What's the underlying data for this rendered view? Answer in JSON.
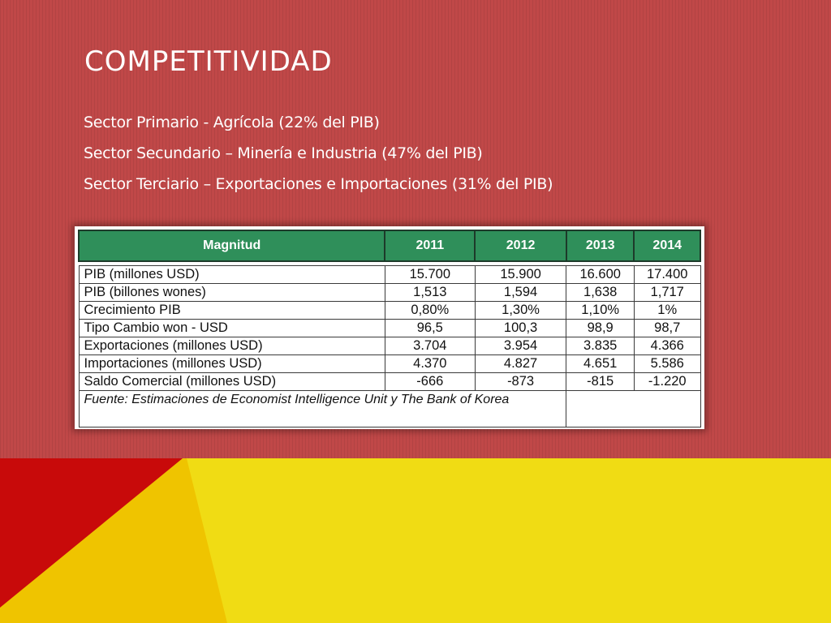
{
  "slide": {
    "title": "COMPETITIVIDAD",
    "bullets": [
      "Sector Primario - Agrícola (22% del PIB)",
      "Sector Secundario – Minería e Industria (47% del PIB)",
      "Sector Terciario – Exportaciones e Importaciones (31% del PIB)"
    ]
  },
  "table": {
    "headers": [
      "Magnitud",
      "2011",
      "2012",
      "2013",
      "2014"
    ],
    "rows": [
      [
        "PIB (millones USD)",
        "15.700",
        "15.900",
        "16.600",
        "17.400"
      ],
      [
        "PIB (billones wones)",
        "1,513",
        "1,594",
        "1,638",
        "1,717"
      ],
      [
        "Crecimiento PIB",
        "0,80%",
        "1,30%",
        "1,10%",
        "1%"
      ],
      [
        "Tipo Cambio won - USD",
        "96,5",
        "100,3",
        "98,9",
        "98,7"
      ],
      [
        "Exportaciones (millones USD)",
        "3.704",
        "3.954",
        "3.835",
        "4.366"
      ],
      [
        "Importaciones (millones USD)",
        "4.370",
        "4.827",
        "4.651",
        "5.586"
      ],
      [
        "Saldo Comercial (millones USD)",
        "-666",
        "-873",
        "-815",
        "-1.220"
      ]
    ],
    "source": "Fuente: Estimaciones de Economist Intelligence Unit y The Bank of Korea"
  },
  "colors": {
    "background_red": "#c04848",
    "header_green": "#2f8f5a",
    "band_red": "#c80a0a",
    "band_orange": "#efc400",
    "band_yellow": "#f0dc14"
  }
}
